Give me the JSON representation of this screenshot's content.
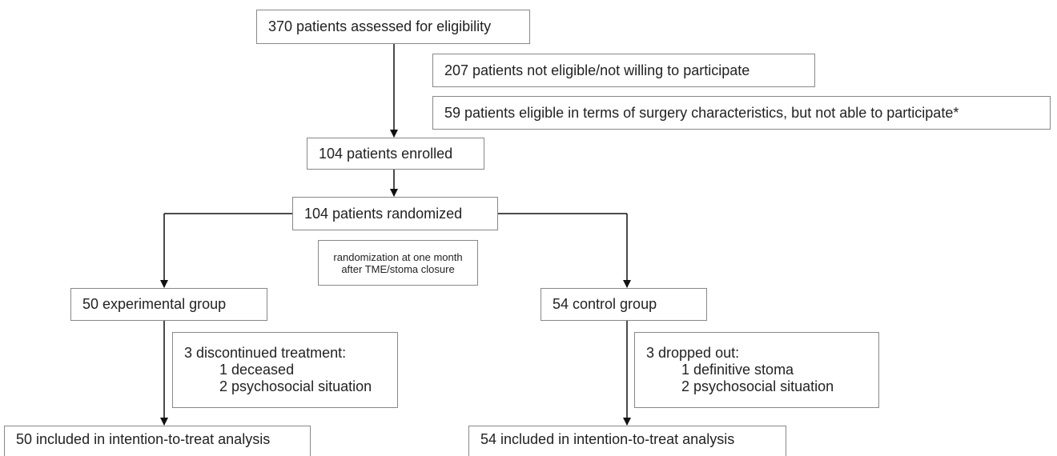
{
  "nodes": [
    {
      "label": "370 patients assessed for eligibility"
    },
    {
      "label": "207 patients not eligible/not willing to participate"
    },
    {
      "label": "59 patients eligible in terms of surgery characteristics, but not able to participate*"
    },
    {
      "label": "104 patients enrolled"
    },
    {
      "label": "104 patients randomized"
    },
    {
      "lines": [
        "randomization at one month",
        "after TME/stoma closure"
      ]
    },
    {
      "label": "50 experimental group"
    },
    {
      "label": "54 control group"
    },
    {
      "lines": [
        "3 discontinued treatment:",
        "1 deceased",
        "2 psychosocial situation"
      ]
    },
    {
      "lines": [
        "3 dropped out:",
        "1 definitive stoma",
        "2 psychosocial situation"
      ]
    },
    {
      "label": "50 included in intention-to-treat analysis"
    },
    {
      "label": "54 included in intention-to-treat analysis"
    }
  ]
}
